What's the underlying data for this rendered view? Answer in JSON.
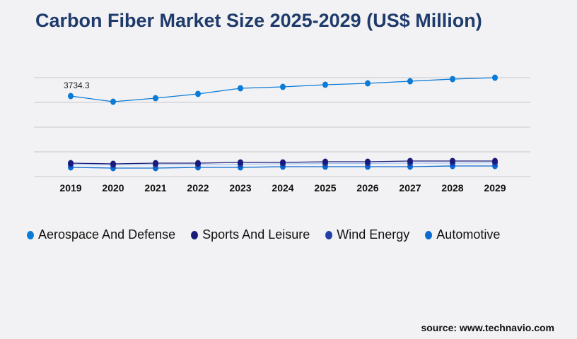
{
  "title": "Carbon Fiber Market Size 2025-2029 (US$ Million)",
  "source": "source: www.technavio.com",
  "chart_data": {
    "type": "line",
    "title": "Carbon Fiber Market Size 2025-2029 (US$ Million)",
    "categories": [
      "2019",
      "2020",
      "2021",
      "2022",
      "2023",
      "2024",
      "2025",
      "2026",
      "2027",
      "2028",
      "2029"
    ],
    "ylim": [
      0,
      4586
    ],
    "grid": true,
    "legend": "bottom",
    "annotations": [
      {
        "category": "2019",
        "series": "Aerospace And Defense",
        "text": "3734.3"
      }
    ],
    "series": [
      {
        "name": "Aerospace And Defense",
        "color": "#0a7bd6",
        "values": [
          3734.3,
          3472,
          3636,
          3833,
          4095,
          4160,
          4259,
          4324,
          4422,
          4521,
          4586
        ]
      },
      {
        "name": "Sports And Leisure",
        "color": "#1a1a7a",
        "values": [
          622,
          590,
          622,
          622,
          655,
          655,
          688,
          688,
          721,
          721,
          721
        ]
      },
      {
        "name": "Wind Energy",
        "color": "#1e40a8",
        "line_color": "#a9c9f2",
        "values": [
          557,
          540,
          557,
          557,
          573,
          590,
          606,
          606,
          622,
          622,
          640
        ]
      },
      {
        "name": "Automotive",
        "color": "#0a6ad0",
        "values": [
          426,
          393,
          393,
          426,
          426,
          459,
          459,
          459,
          459,
          491,
          491
        ]
      }
    ]
  }
}
